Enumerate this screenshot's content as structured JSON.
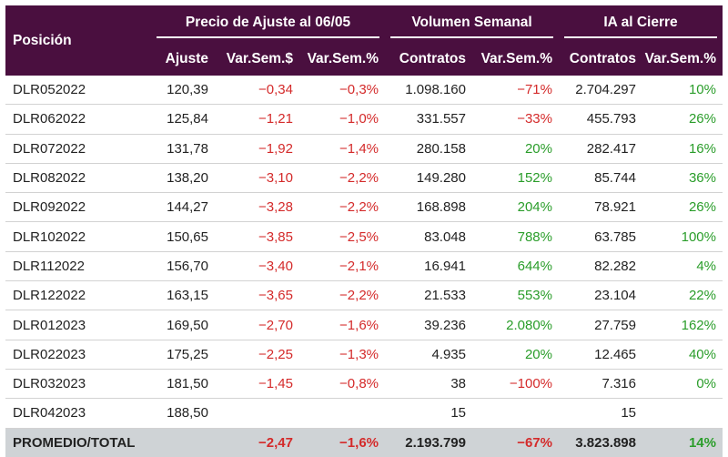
{
  "header": {
    "position_label": "Posición",
    "group_price": "Precio de Ajuste al 06/05",
    "group_volume": "Volumen Semanal",
    "group_oi": "IA al Cierre",
    "sub": [
      "Ajuste",
      "Var.Sem.$",
      "Var.Sem.%",
      "Contratos",
      "Var.Sem.%",
      "Contratos",
      "Var.Sem.%"
    ]
  },
  "rows": [
    {
      "name": "DLR052022",
      "ajuste": "120,39",
      "var_abs": "-0,34",
      "var_pct": "-0,3%",
      "vol": "1.098.160",
      "vol_var": "-71%",
      "oi": "2.704.297",
      "oi_var": "10%"
    },
    {
      "name": "DLR062022",
      "ajuste": "125,84",
      "var_abs": "-1,21",
      "var_pct": "-1,0%",
      "vol": "331.557",
      "vol_var": "-33%",
      "oi": "455.793",
      "oi_var": "26%"
    },
    {
      "name": "DLR072022",
      "ajuste": "131,78",
      "var_abs": "-1,92",
      "var_pct": "-1,4%",
      "vol": "280.158",
      "vol_var": "20%",
      "oi": "282.417",
      "oi_var": "16%"
    },
    {
      "name": "DLR082022",
      "ajuste": "138,20",
      "var_abs": "-3,10",
      "var_pct": "-2,2%",
      "vol": "149.280",
      "vol_var": "152%",
      "oi": "85.744",
      "oi_var": "36%"
    },
    {
      "name": "DLR092022",
      "ajuste": "144,27",
      "var_abs": "-3,28",
      "var_pct": "-2,2%",
      "vol": "168.898",
      "vol_var": "204%",
      "oi": "78.921",
      "oi_var": "26%"
    },
    {
      "name": "DLR102022",
      "ajuste": "150,65",
      "var_abs": "-3,85",
      "var_pct": "-2,5%",
      "vol": "83.048",
      "vol_var": "788%",
      "oi": "63.785",
      "oi_var": "100%"
    },
    {
      "name": "DLR112022",
      "ajuste": "156,70",
      "var_abs": "-3,40",
      "var_pct": "-2,1%",
      "vol": "16.941",
      "vol_var": "644%",
      "oi": "82.282",
      "oi_var": "4%"
    },
    {
      "name": "DLR122022",
      "ajuste": "163,15",
      "var_abs": "-3,65",
      "var_pct": "-2,2%",
      "vol": "21.533",
      "vol_var": "553%",
      "oi": "23.104",
      "oi_var": "22%"
    },
    {
      "name": "DLR012023",
      "ajuste": "169,50",
      "var_abs": "-2,70",
      "var_pct": "-1,6%",
      "vol": "39.236",
      "vol_var": "2.080%",
      "oi": "27.759",
      "oi_var": "162%"
    },
    {
      "name": "DLR022023",
      "ajuste": "175,25",
      "var_abs": "-2,25",
      "var_pct": "-1,3%",
      "vol": "4.935",
      "vol_var": "20%",
      "oi": "12.465",
      "oi_var": "40%"
    },
    {
      "name": "DLR032023",
      "ajuste": "181,50",
      "var_abs": "-1,45",
      "var_pct": "-0,8%",
      "vol": "38",
      "vol_var": "-100%",
      "oi": "7.316",
      "oi_var": "0%"
    },
    {
      "name": "DLR042023",
      "ajuste": "188,50",
      "var_abs": "",
      "var_pct": "",
      "vol": "15",
      "vol_var": "",
      "oi": "15",
      "oi_var": ""
    }
  ],
  "total": {
    "name": "PROMEDIO/TOTAL",
    "ajuste": "",
    "var_abs": "-2,47",
    "var_pct": "-1,6%",
    "vol": "2.193.799",
    "vol_var": "-67%",
    "oi": "3.823.898",
    "oi_var": "14%"
  },
  "colors": {
    "header_bg": "#4a0f3f",
    "negative": "#d42a2a",
    "positive": "#2a9d2a",
    "total_bg": "#cfd3d6"
  }
}
